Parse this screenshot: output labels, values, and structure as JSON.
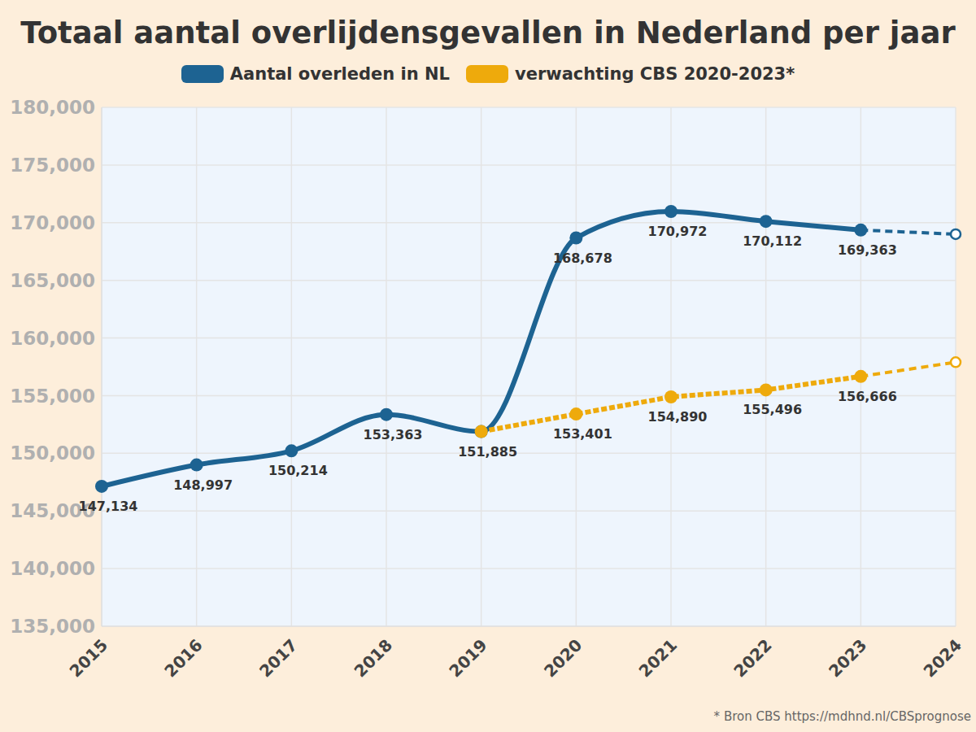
{
  "chart_data": {
    "type": "line",
    "title": "Totaal aantal overlijdensgevallen in Nederland per jaar",
    "source": "* Bron CBS https://mdhnd.nl/CBSprognose",
    "categories": [
      "2015",
      "2016",
      "2017",
      "2018",
      "2019",
      "2020",
      "2021",
      "2022",
      "2023",
      "2024"
    ],
    "series": [
      {
        "name": "Aantal overleden in NL",
        "color": "#1d6392",
        "line_style": "solid",
        "marker": "circle",
        "values": [
          147134,
          148997,
          150214,
          153363,
          151885,
          168678,
          170972,
          170112,
          169363,
          null
        ],
        "value_labels": [
          "147,134",
          "148,997",
          "150,214",
          "153,363",
          "151,885",
          "168,678",
          "170,972",
          "170,112",
          "169,363",
          null
        ]
      },
      {
        "name": "Aantal overleden in NL",
        "color": "#1d6392",
        "line_style": "dashed",
        "marker": "open",
        "values": [
          null,
          null,
          null,
          null,
          null,
          null,
          null,
          null,
          169363,
          169000
        ]
      },
      {
        "name": "verwachting CBS 2020-2023*",
        "color": "#eeaa0c",
        "line_style": "dotted",
        "marker": "circle",
        "values": [
          null,
          null,
          null,
          null,
          151885,
          153401,
          154890,
          155496,
          156666,
          null
        ],
        "value_labels": [
          null,
          null,
          null,
          null,
          null,
          "153,401",
          "154,890",
          "155,496",
          "156,666",
          null
        ]
      },
      {
        "name": "verwachting CBS 2020-2023*",
        "color": "#eeaa0c",
        "line_style": "dashed",
        "marker": "open",
        "values": [
          null,
          null,
          null,
          null,
          null,
          null,
          null,
          null,
          156666,
          157900
        ]
      }
    ],
    "ylim": [
      135000,
      180000
    ],
    "yticks": [
      {
        "value": 135000,
        "label": "135,000"
      },
      {
        "value": 140000,
        "label": "140,000"
      },
      {
        "value": 145000,
        "label": "145,000"
      },
      {
        "value": 150000,
        "label": "150,000"
      },
      {
        "value": 155000,
        "label": "155,000"
      },
      {
        "value": 160000,
        "label": "160,000"
      },
      {
        "value": 165000,
        "label": "165,000"
      },
      {
        "value": 170000,
        "label": "170,000"
      },
      {
        "value": 175000,
        "label": "175,000"
      },
      {
        "value": 180000,
        "label": "180,000"
      }
    ],
    "grid": true,
    "data_labels": true
  }
}
